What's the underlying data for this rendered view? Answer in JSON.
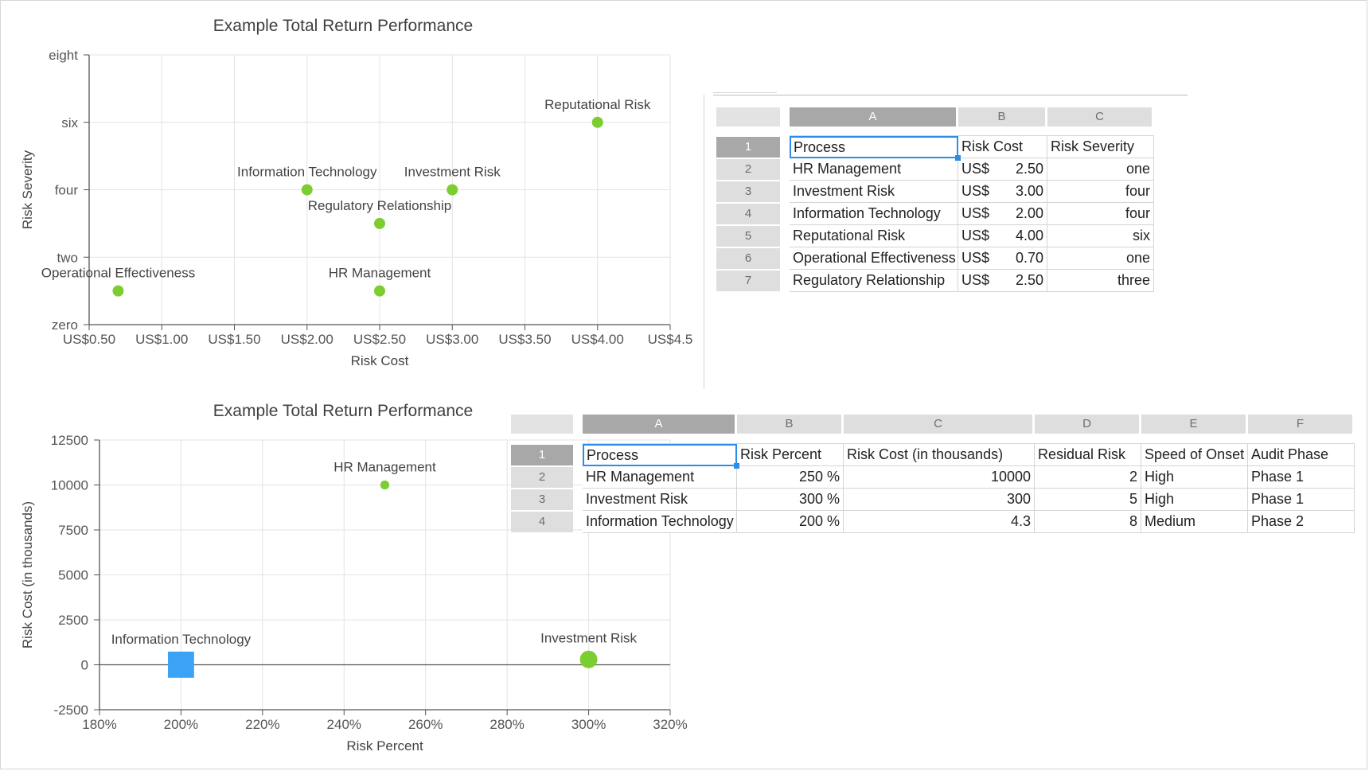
{
  "chart_data": [
    {
      "type": "scatter",
      "title": "Example Total Return Performance",
      "xlabel": "Risk Cost",
      "ylabel": "Risk Severity",
      "xlim": [
        0.5,
        4.5
      ],
      "ylim": [
        0,
        8
      ],
      "x_ticks": [
        0.5,
        1.0,
        1.5,
        2.0,
        2.5,
        3.0,
        3.5,
        4.0,
        4.5
      ],
      "x_tick_labels": [
        "US$0.50",
        "US$1.00",
        "US$1.50",
        "US$2.00",
        "US$2.50",
        "US$3.00",
        "US$3.50",
        "US$4.00",
        "US$4.5"
      ],
      "y_ticks": [
        0,
        2,
        4,
        6,
        8
      ],
      "y_tick_labels": [
        "zero",
        "two",
        "four",
        "six",
        "eight"
      ],
      "grid": true,
      "legend": "none",
      "color": "#7ccd32",
      "points": [
        {
          "label": "HR Management",
          "x": 2.5,
          "y": 1
        },
        {
          "label": "Investment Risk",
          "x": 3.0,
          "y": 4
        },
        {
          "label": "Information Technology",
          "x": 2.0,
          "y": 4
        },
        {
          "label": "Reputational Risk",
          "x": 4.0,
          "y": 6
        },
        {
          "label": "Operational Effectiveness",
          "x": 0.7,
          "y": 1
        },
        {
          "label": "Regulatory Relationship",
          "x": 2.5,
          "y": 3
        }
      ]
    },
    {
      "type": "scatter",
      "title": "Example Total Return Performance",
      "xlabel": "Risk Percent",
      "ylabel": "Risk Cost (in thousands)",
      "xlim": [
        180,
        320
      ],
      "ylim": [
        -2500,
        12500
      ],
      "x_ticks": [
        180,
        200,
        220,
        240,
        260,
        280,
        300,
        320
      ],
      "x_tick_labels": [
        "180%",
        "200%",
        "220%",
        "240%",
        "260%",
        "280%",
        "300%",
        "320%"
      ],
      "y_ticks": [
        -2500,
        0,
        2500,
        5000,
        7500,
        10000,
        12500
      ],
      "y_tick_labels": [
        "-2500",
        "0",
        "2500",
        "5000",
        "7500",
        "10000",
        "12500"
      ],
      "grid": true,
      "legend": "none",
      "points": [
        {
          "label": "HR Management",
          "x": 250,
          "y": 10000,
          "size": 2,
          "shape": "circle",
          "color": "#7ccd32"
        },
        {
          "label": "Investment Risk",
          "x": 300,
          "y": 300,
          "size": 5,
          "shape": "circle",
          "color": "#7ccd32"
        },
        {
          "label": "Information Technology",
          "x": 200,
          "y": 4.3,
          "size": 8,
          "shape": "square",
          "color": "#3aa3f5"
        }
      ]
    }
  ],
  "table1": {
    "columns": [
      "A",
      "B",
      "C"
    ],
    "rows": [
      {
        "n": "1",
        "a": "Process",
        "b": "Risk Cost",
        "c": "Risk Severity"
      },
      {
        "n": "2",
        "a": "HR Management",
        "cur": "US$",
        "b": "2.50",
        "c": "one"
      },
      {
        "n": "3",
        "a": "Investment Risk",
        "cur": "US$",
        "b": "3.00",
        "c": "four"
      },
      {
        "n": "4",
        "a": "Information Technology",
        "cur": "US$",
        "b": "2.00",
        "c": "four"
      },
      {
        "n": "5",
        "a": "Reputational Risk",
        "cur": "US$",
        "b": "4.00",
        "c": "six"
      },
      {
        "n": "6",
        "a": "Operational Effectiveness",
        "cur": "US$",
        "b": "0.70",
        "c": "one"
      },
      {
        "n": "7",
        "a": "Regulatory Relationship",
        "cur": "US$",
        "b": "2.50",
        "c": "three"
      }
    ]
  },
  "table2": {
    "columns": [
      "A",
      "B",
      "C",
      "D",
      "E",
      "F"
    ],
    "rows": [
      {
        "n": "1",
        "cells": [
          "Process",
          "Risk Percent",
          "Risk Cost (in thousands)",
          "Residual Risk",
          "Speed of Onset",
          "Audit Phase"
        ]
      },
      {
        "n": "2",
        "cells": [
          "HR Management",
          "250 %",
          "10000",
          "2",
          "High",
          "Phase 1"
        ]
      },
      {
        "n": "3",
        "cells": [
          "Investment Risk",
          "300 %",
          "300",
          "5",
          "High",
          "Phase 1"
        ]
      },
      {
        "n": "4",
        "cells": [
          "Information Technology",
          "200 %",
          "4.3",
          "8",
          "Medium",
          "Phase 2"
        ]
      }
    ]
  }
}
